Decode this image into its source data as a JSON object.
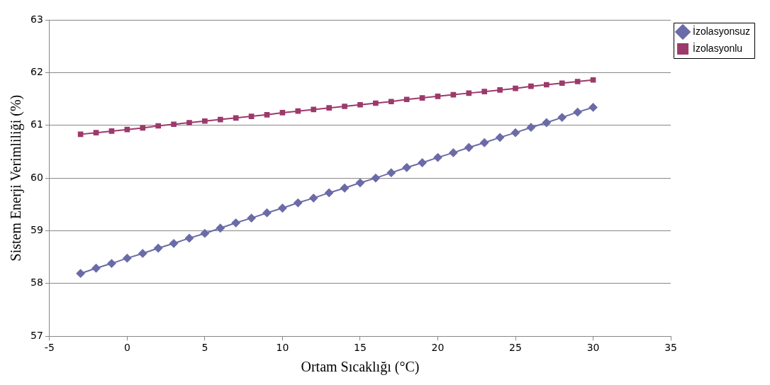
{
  "chart_data": {
    "type": "line",
    "xlabel": "Ortam Sıcaklığı (°C)",
    "ylabel": "Sistem Enerji Verimliliği (%)",
    "x": [
      -3,
      -2,
      -1,
      0,
      1,
      2,
      3,
      4,
      5,
      6,
      7,
      8,
      9,
      10,
      11,
      12,
      13,
      14,
      15,
      16,
      17,
      18,
      19,
      20,
      21,
      22,
      23,
      24,
      25,
      26,
      27,
      28,
      29,
      30
    ],
    "series": [
      {
        "name": "İzolasyonsuz",
        "color": "#6b6ba8",
        "marker": "diamond",
        "values": [
          58.19,
          58.29,
          58.38,
          58.48,
          58.57,
          58.67,
          58.76,
          58.86,
          58.95,
          59.05,
          59.15,
          59.24,
          59.34,
          59.43,
          59.53,
          59.62,
          59.72,
          59.81,
          59.91,
          60.0,
          60.1,
          60.2,
          60.29,
          60.39,
          60.48,
          60.58,
          60.67,
          60.77,
          60.86,
          60.96,
          61.05,
          61.15,
          61.25,
          61.34
        ]
      },
      {
        "name": "İzolasyonlu",
        "color": "#9c3a6b",
        "marker": "square",
        "values": [
          60.83,
          60.86,
          60.89,
          60.92,
          60.95,
          60.99,
          61.02,
          61.05,
          61.08,
          61.11,
          61.14,
          61.17,
          61.2,
          61.24,
          61.27,
          61.3,
          61.33,
          61.36,
          61.39,
          61.42,
          61.45,
          61.49,
          61.52,
          61.55,
          61.58,
          61.61,
          61.64,
          61.67,
          61.7,
          61.74,
          61.77,
          61.8,
          61.83,
          61.86
        ]
      }
    ],
    "xlim": [
      -5,
      35
    ],
    "xticks": [
      -5,
      0,
      5,
      10,
      15,
      20,
      25,
      30,
      35
    ],
    "ylim": [
      57,
      63
    ],
    "yticks": [
      57,
      58,
      59,
      60,
      61,
      62,
      63
    ],
    "grid": "y",
    "legend": "top right",
    "line_style": "solid"
  }
}
